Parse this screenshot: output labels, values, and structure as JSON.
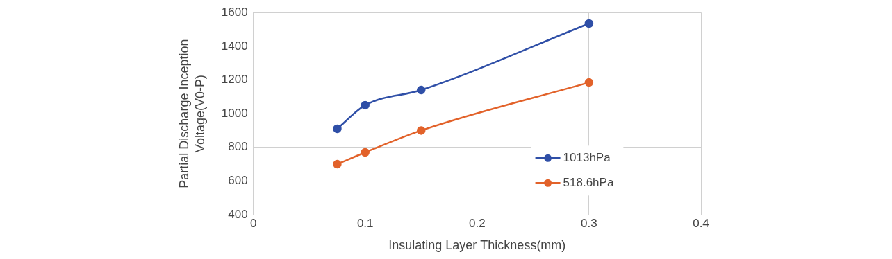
{
  "chart_data": {
    "type": "line",
    "x_label": "Insulating Layer Thickness(mm)",
    "y_label": [
      "Partial Discharge Inception",
      "Voltage(V0-P)"
    ],
    "x": [
      0.075,
      0.1,
      0.15,
      0.3
    ],
    "series": [
      {
        "name": "1013hPa",
        "color": "#2f4fa7",
        "values": [
          910,
          1050,
          1140,
          1535
        ],
        "marker": "circle",
        "line_style": "solid"
      },
      {
        "name": "518.6hPa",
        "color": "#e2622a",
        "values": [
          700,
          770,
          900,
          1185
        ],
        "marker": "circle",
        "line_style": "solid"
      }
    ],
    "xlim": [
      0,
      0.4
    ],
    "xticks": [
      0,
      0.1,
      0.2,
      0.3,
      0.4
    ],
    "ylim": [
      400,
      1600
    ],
    "yticks": [
      400,
      600,
      800,
      1000,
      1200,
      1400,
      1600
    ],
    "grid": true,
    "legend": "right"
  }
}
